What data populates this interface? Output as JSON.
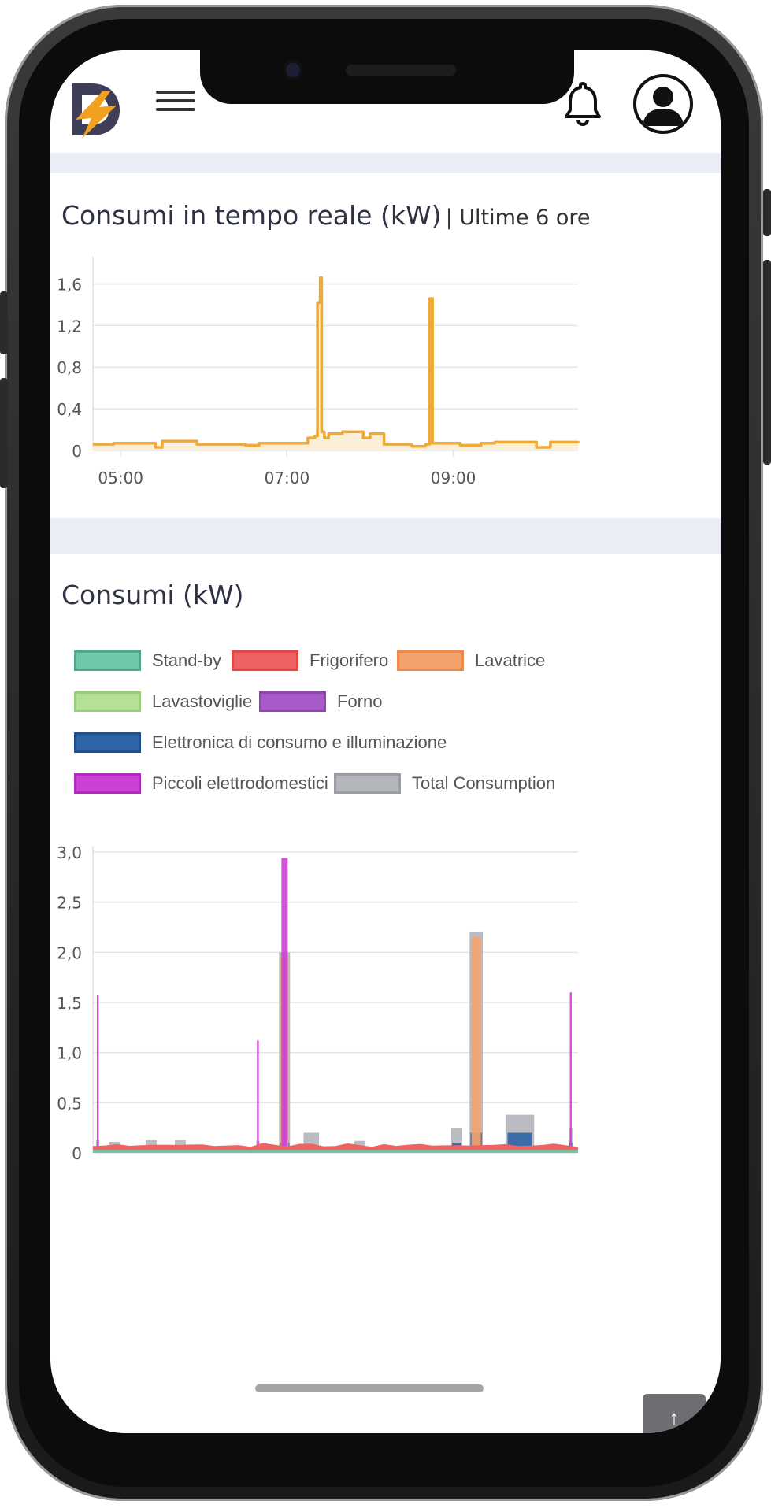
{
  "header": {
    "logo_alt": "D",
    "menu_icon": "hamburger-menu-icon",
    "notification_icon": "bell-icon",
    "profile_icon": "user-avatar-icon"
  },
  "realtime": {
    "title": "Consumi in tempo reale (kW)",
    "subtitle": "| Ultime 6 ore"
  },
  "consumption": {
    "title": "Consumi (kW)"
  },
  "colors": {
    "accent": "#f0a935",
    "accent_fill": "#fbefd8",
    "grid": "#e4e4e4",
    "band": "#e9eef6"
  },
  "legend": [
    {
      "label": "Stand-by",
      "fill": "#6fc8a9",
      "border": "#4caa8c"
    },
    {
      "label": "Frigorifero",
      "fill": "#ef6262",
      "border": "#e04848"
    },
    {
      "label": "Lavatrice",
      "fill": "#f4a26c",
      "border": "#ee8a4b"
    },
    {
      "label": "Lavastoviglie",
      "fill": "#b6e09a",
      "border": "#98cf79"
    },
    {
      "label": "Forno",
      "fill": "#a65bc8",
      "border": "#8f44b3"
    },
    {
      "label": "Elettronica di consumo e illuminazione",
      "fill": "#2f64a8",
      "border": "#1f4f90"
    },
    {
      "label": "Piccoli elettrodomestici",
      "fill": "#cc40d8",
      "border": "#b12ac0"
    },
    {
      "label": "Total Consumption",
      "fill": "#b3b5ba",
      "border": "#999ca2"
    }
  ],
  "chart_data": [
    {
      "type": "area",
      "title": "Consumi in tempo reale (kW)",
      "subtitle": "| Ultime 6 ore",
      "xlabel": "",
      "ylabel": "",
      "x_range": [
        "04:40",
        "10:30"
      ],
      "x_ticks": [
        "05:00",
        "07:00",
        "09:00"
      ],
      "y_ticks": [
        "0",
        "0,4",
        "0,8",
        "1,2",
        "1,6"
      ],
      "ylim": [
        0,
        1.8
      ],
      "grid": true,
      "series": [
        {
          "color": "#f0a935",
          "x": [
            "04:40",
            "04:55",
            "05:25",
            "05:30",
            "05:55",
            "06:30",
            "06:40",
            "07:15",
            "07:20",
            "07:22",
            "07:24",
            "07:25",
            "07:27",
            "07:30",
            "07:40",
            "07:55",
            "08:00",
            "08:10",
            "08:30",
            "08:40",
            "08:43",
            "08:45",
            "09:05",
            "09:20",
            "09:30",
            "10:00",
            "10:10",
            "10:30"
          ],
          "values": [
            0.06,
            0.07,
            0.03,
            0.09,
            0.06,
            0.05,
            0.07,
            0.12,
            0.14,
            1.42,
            1.66,
            0.18,
            0.12,
            0.16,
            0.18,
            0.12,
            0.16,
            0.06,
            0.04,
            0.06,
            1.46,
            0.07,
            0.05,
            0.07,
            0.08,
            0.03,
            0.08,
            0.07
          ]
        }
      ]
    },
    {
      "type": "area",
      "title": "Consumi (kW)",
      "xlabel": "",
      "ylabel": "",
      "y_ticks": [
        "0",
        "0,5",
        "1,0",
        "1,5",
        "2,0",
        "2,5",
        "3,0"
      ],
      "ylim": [
        0,
        3.0
      ],
      "grid": true,
      "legend_position": "top",
      "series": [
        {
          "name": "Stand-by",
          "color": "#6fc8a9",
          "values": [
            0.03,
            0.03,
            0.03,
            0.03,
            0.03,
            0.03,
            0.03,
            0.03,
            0.03,
            0.03,
            0.03,
            0.03
          ]
        },
        {
          "name": "Frigorifero",
          "color": "#ef6262",
          "values": [
            0.08,
            0.07,
            0.09,
            0.08,
            0.07,
            0.08,
            0.09,
            0.07,
            0.08,
            0.09,
            0.08,
            0.07
          ]
        },
        {
          "name": "Lavatrice",
          "color": "#f4a26c",
          "values": [
            0,
            0,
            0,
            0,
            0,
            1.97,
            0,
            0,
            0,
            2.15,
            0,
            0
          ]
        },
        {
          "name": "Elettronica di consumo e illuminazione",
          "color": "#2f64a8",
          "values": [
            0.02,
            0.01,
            0.01,
            0.02,
            0.02,
            0.1,
            0.05,
            0.02,
            0.1,
            0.2,
            0.2,
            0.1
          ]
        },
        {
          "name": "Piccoli elettrodomestici",
          "color": "#cc40d8",
          "values": [
            1.57,
            0,
            0,
            0,
            1.12,
            2.94,
            0,
            0,
            0,
            0,
            0,
            1.6
          ]
        },
        {
          "name": "Total Consumption",
          "color": "#b3b5ba",
          "values": [
            0.13,
            0.11,
            0.13,
            0.13,
            0.12,
            2.0,
            0.2,
            0.12,
            0.25,
            2.2,
            0.38,
            0.25
          ]
        }
      ]
    }
  ]
}
